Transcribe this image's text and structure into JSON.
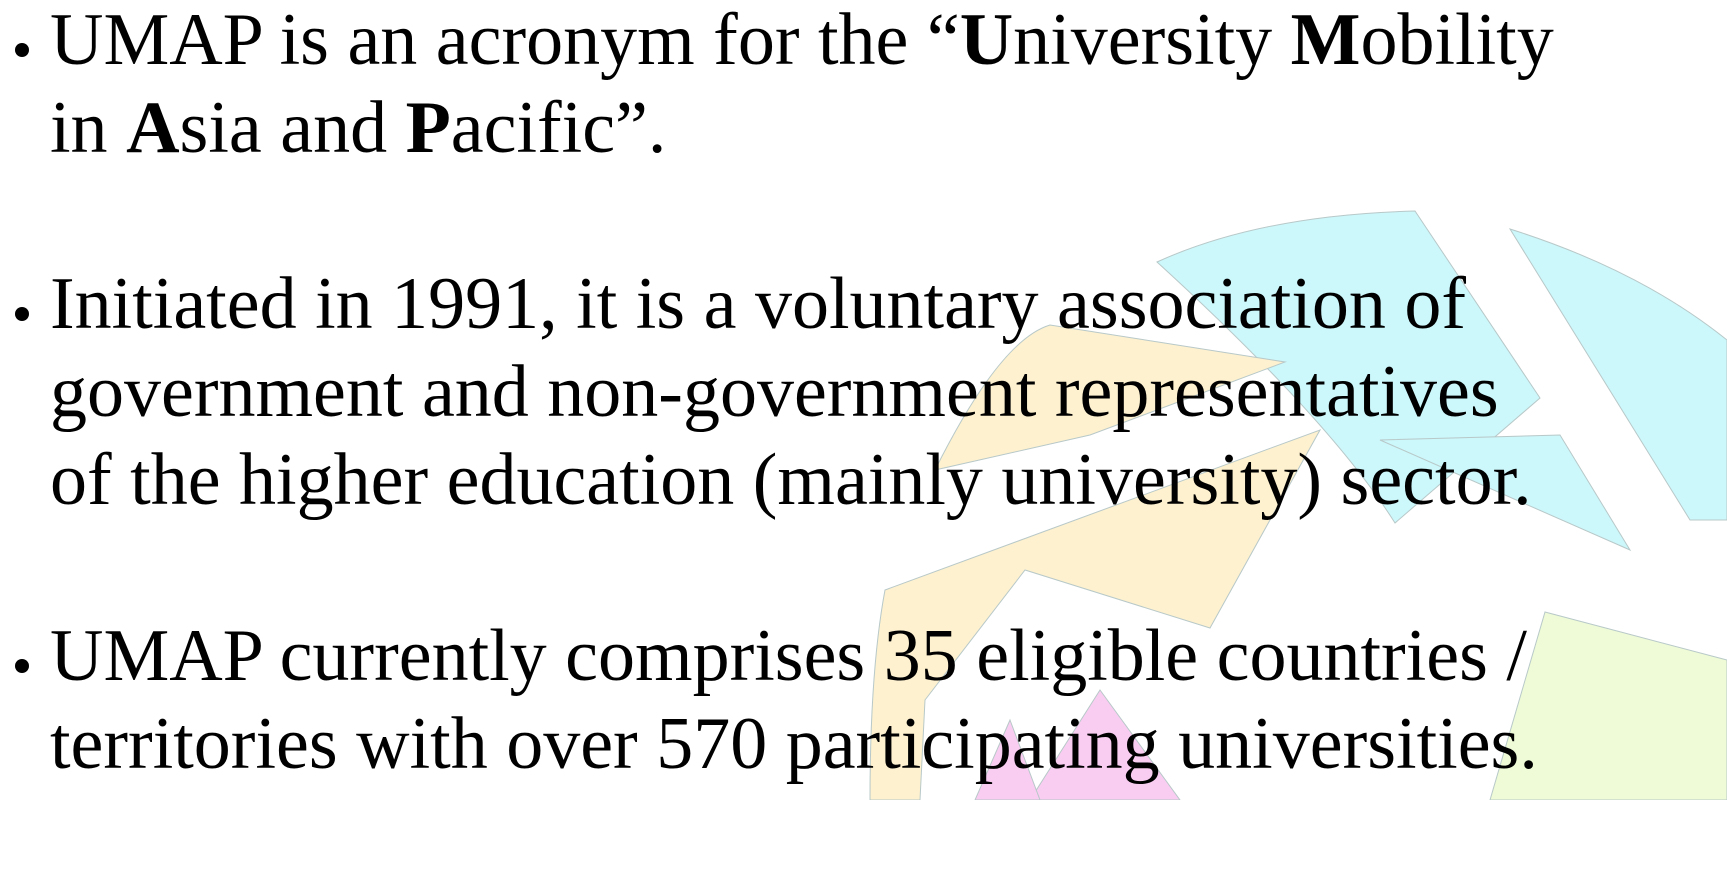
{
  "bullets": [
    {
      "lines": [
        [
          {
            "text": "UMAP is an acronym for the “"
          },
          {
            "text": "U",
            "bold": true
          },
          {
            "text": "niversity "
          },
          {
            "text": "M",
            "bold": true
          },
          {
            "text": "obility"
          }
        ],
        [
          {
            "text": "in "
          },
          {
            "text": "A",
            "bold": true
          },
          {
            "text": "sia and "
          },
          {
            "text": "P",
            "bold": true
          },
          {
            "text": "acific”."
          }
        ]
      ]
    },
    {
      "lines": [
        [
          {
            "text": "Initiated in 1991, it is a voluntary association of"
          }
        ],
        [
          {
            "text": "government and non-government representatives"
          }
        ],
        [
          {
            "text": "of the higher education (mainly university) sector."
          }
        ]
      ]
    },
    {
      "lines": [
        [
          {
            "text": "UMAP currently comprises 35 eligible countries /"
          }
        ],
        [
          {
            "text": "territories with over 570 participating universities."
          }
        ]
      ]
    }
  ]
}
